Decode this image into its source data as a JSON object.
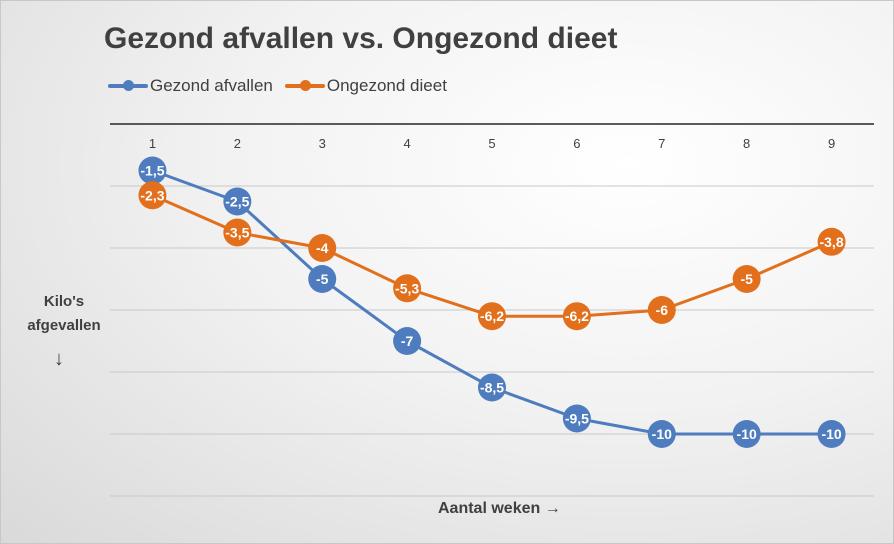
{
  "colors": {
    "gezond": "#4e7cbe",
    "ongezond": "#e26f1c",
    "grid": "#c8c8c8",
    "axis": "#262626"
  },
  "chart_data": {
    "type": "line",
    "title": "Gezond afvallen vs. Ongezond dieet",
    "xlabel": "Aantal weken",
    "ylabel": "Kilo's afgevallen",
    "x": [
      1,
      2,
      3,
      4,
      5,
      6,
      7,
      8,
      9
    ],
    "x_ticks": [
      "1",
      "2",
      "3",
      "4",
      "5",
      "6",
      "7",
      "8",
      "9"
    ],
    "x_axis_position": "top",
    "ylim": [
      -12,
      0
    ],
    "y_gridlines": [
      0,
      -2,
      -4,
      -6,
      -8,
      -10,
      -12
    ],
    "grid": true,
    "legend": "top-left",
    "series": [
      {
        "name": "Gezond afvallen",
        "color": "#4e7cbe",
        "values": [
          -1.5,
          -2.5,
          -5,
          -7,
          -8.5,
          -9.5,
          -10,
          -10,
          -10
        ],
        "labels": [
          "-1,5",
          "-2,5",
          "-5",
          "-7",
          "-8,5",
          "-9,5",
          "-10",
          "-10",
          "-10"
        ]
      },
      {
        "name": "Ongezond dieet",
        "color": "#e26f1c",
        "values": [
          -2.3,
          -3.5,
          -4,
          -5.3,
          -6.2,
          -6.2,
          -6,
          -5,
          -3.8
        ],
        "labels": [
          "-2,3",
          "-3,5",
          "-4",
          "-5,3",
          "-6,2",
          "-6,2",
          "-6",
          "-5",
          "-3,8"
        ]
      }
    ]
  },
  "ylabel_lines": [
    "Kilo's",
    "afgevallen"
  ],
  "ylabel_arrow": "↓",
  "xlabel_text": "Aantal weken →"
}
